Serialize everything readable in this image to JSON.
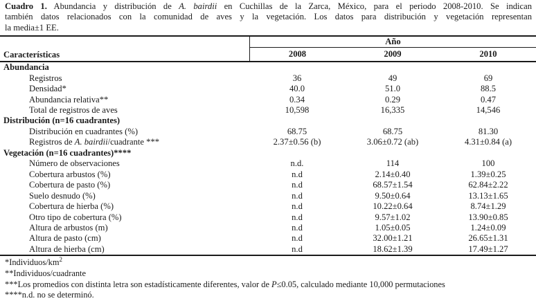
{
  "caption": {
    "lines": [
      {
        "parts": [
          {
            "text": "Cuadro 1.",
            "bold": true,
            "name": "table-number"
          },
          {
            "text": " Abundancia y distribución de "
          },
          {
            "text": "A. bairdii",
            "italic": true,
            "name": "species-name"
          },
          {
            "text": " en Cuchillas de la Zarca, México, para el periodo 2008-2010. Se indican"
          }
        ]
      },
      {
        "parts": [
          {
            "text": "también datos relacionados con la comunidad de aves y la vegetación. Los datos para distribución y vegetación representan"
          }
        ]
      },
      {
        "parts": [
          {
            "text": "la media±1 EE."
          }
        ]
      }
    ]
  },
  "table": {
    "characteristics_header": "Características",
    "year_group_label": "Año",
    "years": [
      "2008",
      "2009",
      "2010"
    ],
    "sections": [
      {
        "title": "Abundancia",
        "rows": [
          {
            "label": [
              {
                "text": "Registros"
              }
            ],
            "values": [
              "36",
              "49",
              "69"
            ]
          },
          {
            "label": [
              {
                "text": "Densidad*"
              }
            ],
            "values": [
              "40.0",
              "51.0",
              "88.5"
            ]
          },
          {
            "label": [
              {
                "text": "Abundancia relativa**"
              }
            ],
            "values": [
              "0.34",
              "0.29",
              "0.47"
            ]
          },
          {
            "label": [
              {
                "text": "Total de registros de aves"
              }
            ],
            "values": [
              "10,598",
              "16,335",
              "14,546"
            ]
          }
        ]
      },
      {
        "title": "Distribución (n=16 cuadrantes)",
        "rows": [
          {
            "label": [
              {
                "text": "Distribución en cuadrantes (%)"
              }
            ],
            "values": [
              "68.75",
              "68.75",
              "81.30"
            ]
          },
          {
            "label": [
              {
                "text": "Registros de "
              },
              {
                "text": "A. bairdii",
                "italic": true,
                "name": "species-name"
              },
              {
                "text": "/cuadrante ***"
              }
            ],
            "values": [
              "2.37±0.56 (b)",
              "3.06±0.72 (ab)",
              "4.31±0.84 (a)"
            ]
          }
        ]
      },
      {
        "title": "Vegetación (n=16 cuadrantes)****",
        "rows": [
          {
            "label": [
              {
                "text": "Número de observaciones"
              }
            ],
            "values": [
              "n.d.",
              "114",
              "100"
            ]
          },
          {
            "label": [
              {
                "text": "Cobertura arbustos (%)"
              }
            ],
            "values": [
              "n.d",
              "2.14±0.40",
              "1.39±0.25"
            ]
          },
          {
            "label": [
              {
                "text": "Cobertura de pasto (%)"
              }
            ],
            "values": [
              "n.d",
              "68.57±1.54",
              "62.84±2.22"
            ]
          },
          {
            "label": [
              {
                "text": "Suelo desnudo (%)"
              }
            ],
            "values": [
              "n.d",
              "9.50±0.64",
              "13.13±1.65"
            ]
          },
          {
            "label": [
              {
                "text": "Cobertura de hierba (%)"
              }
            ],
            "values": [
              "n.d",
              "10.22±0.64",
              "8.74±1.29"
            ]
          },
          {
            "label": [
              {
                "text": "Otro tipo de cobertura (%)"
              }
            ],
            "values": [
              "n.d",
              "9.57±1.02",
              "13.90±0.85"
            ]
          },
          {
            "label": [
              {
                "text": "Altura de arbustos (m)"
              }
            ],
            "values": [
              "n.d",
              "1.05±0.05",
              "1.24±0.09"
            ]
          },
          {
            "label": [
              {
                "text": "Altura de pasto (cm)"
              }
            ],
            "values": [
              "n.d",
              "32.00±1.21",
              "26.65±1.31"
            ]
          },
          {
            "label": [
              {
                "text": "Altura de hierba (cm)"
              }
            ],
            "values": [
              "n.d",
              "18.62±1.39",
              "17.49±1.27"
            ]
          }
        ]
      }
    ]
  },
  "footnotes": [
    {
      "parts": [
        {
          "text": "*Individuos/km"
        },
        {
          "text": "2",
          "sup": true
        }
      ]
    },
    {
      "parts": [
        {
          "text": "**Individuos/cuadrante"
        }
      ]
    },
    {
      "parts": [
        {
          "text": "***Los promedios con distinta letra son estadísticamente diferentes, valor de "
        },
        {
          "text": "P",
          "italic": true,
          "name": "p-value-symbol"
        },
        {
          "text": "≤0.05, calculado mediante 10,000 permutaciones"
        }
      ]
    },
    {
      "parts": [
        {
          "text": "****n.d. no se determinó."
        }
      ]
    }
  ]
}
